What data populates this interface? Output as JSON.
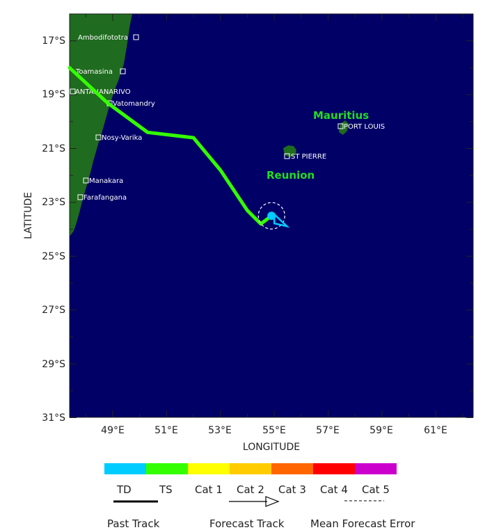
{
  "axes": {
    "xlabel": "LONGITUDE",
    "ylabel": "LATITUDE",
    "lat_ticks": [
      "17°S",
      "19°S",
      "21°S",
      "23°S",
      "25°S",
      "27°S",
      "29°S",
      "31°S"
    ],
    "lon_ticks": [
      "49°E",
      "51°E",
      "53°E",
      "55°E",
      "57°E",
      "59°E",
      "61°E"
    ]
  },
  "places": {
    "ambodifototra": "Ambodifototra",
    "toamasina": "Toamasina",
    "antananarivo": "ANTANANARIVO",
    "vatomandry": "Vatomandry",
    "nosy_varika": "Nosy-Varika",
    "manakara": "Manakara",
    "farafangana": "Farafangana",
    "port_louis": "PORT LOUIS",
    "st_pierre": "ST PIERRE",
    "mauritius": "Mauritius",
    "reunion": "Reunion"
  },
  "track": {
    "past_positions": [
      {
        "lon": 47.4,
        "lat": -18.0
      },
      {
        "lon": 48.8,
        "lat": -19.3
      },
      {
        "lon": 50.3,
        "lat": -20.4
      },
      {
        "lon": 52.0,
        "lat": -20.6
      },
      {
        "lon": 53.0,
        "lat": -21.8
      },
      {
        "lon": 54.0,
        "lat": -23.3
      },
      {
        "lon": 54.5,
        "lat": -23.8
      },
      {
        "lon": 54.9,
        "lat": -23.5
      }
    ],
    "current_position": {
      "lon": 54.9,
      "lat": -23.5
    },
    "forecast_direction": "southeast",
    "past_track_color": "#33ff00",
    "current_color": "#00ccff"
  },
  "colors": {
    "ocean": "#000066",
    "land": "#1f6b1f",
    "TD": "#00ccff",
    "TS": "#33ff00",
    "Cat 1": "#ffff00",
    "Cat 2": "#ffcc00",
    "Cat 3": "#ff6600",
    "Cat 4": "#ff0000",
    "Cat 5": "#cc00cc"
  },
  "legend": {
    "categories": [
      "TD",
      "TS",
      "Cat 1",
      "Cat 2",
      "Cat 3",
      "Cat 4",
      "Cat 5"
    ],
    "past_track": "Past Track",
    "forecast_track": "Forecast Track",
    "mean_error": "Mean Forecast Error"
  }
}
